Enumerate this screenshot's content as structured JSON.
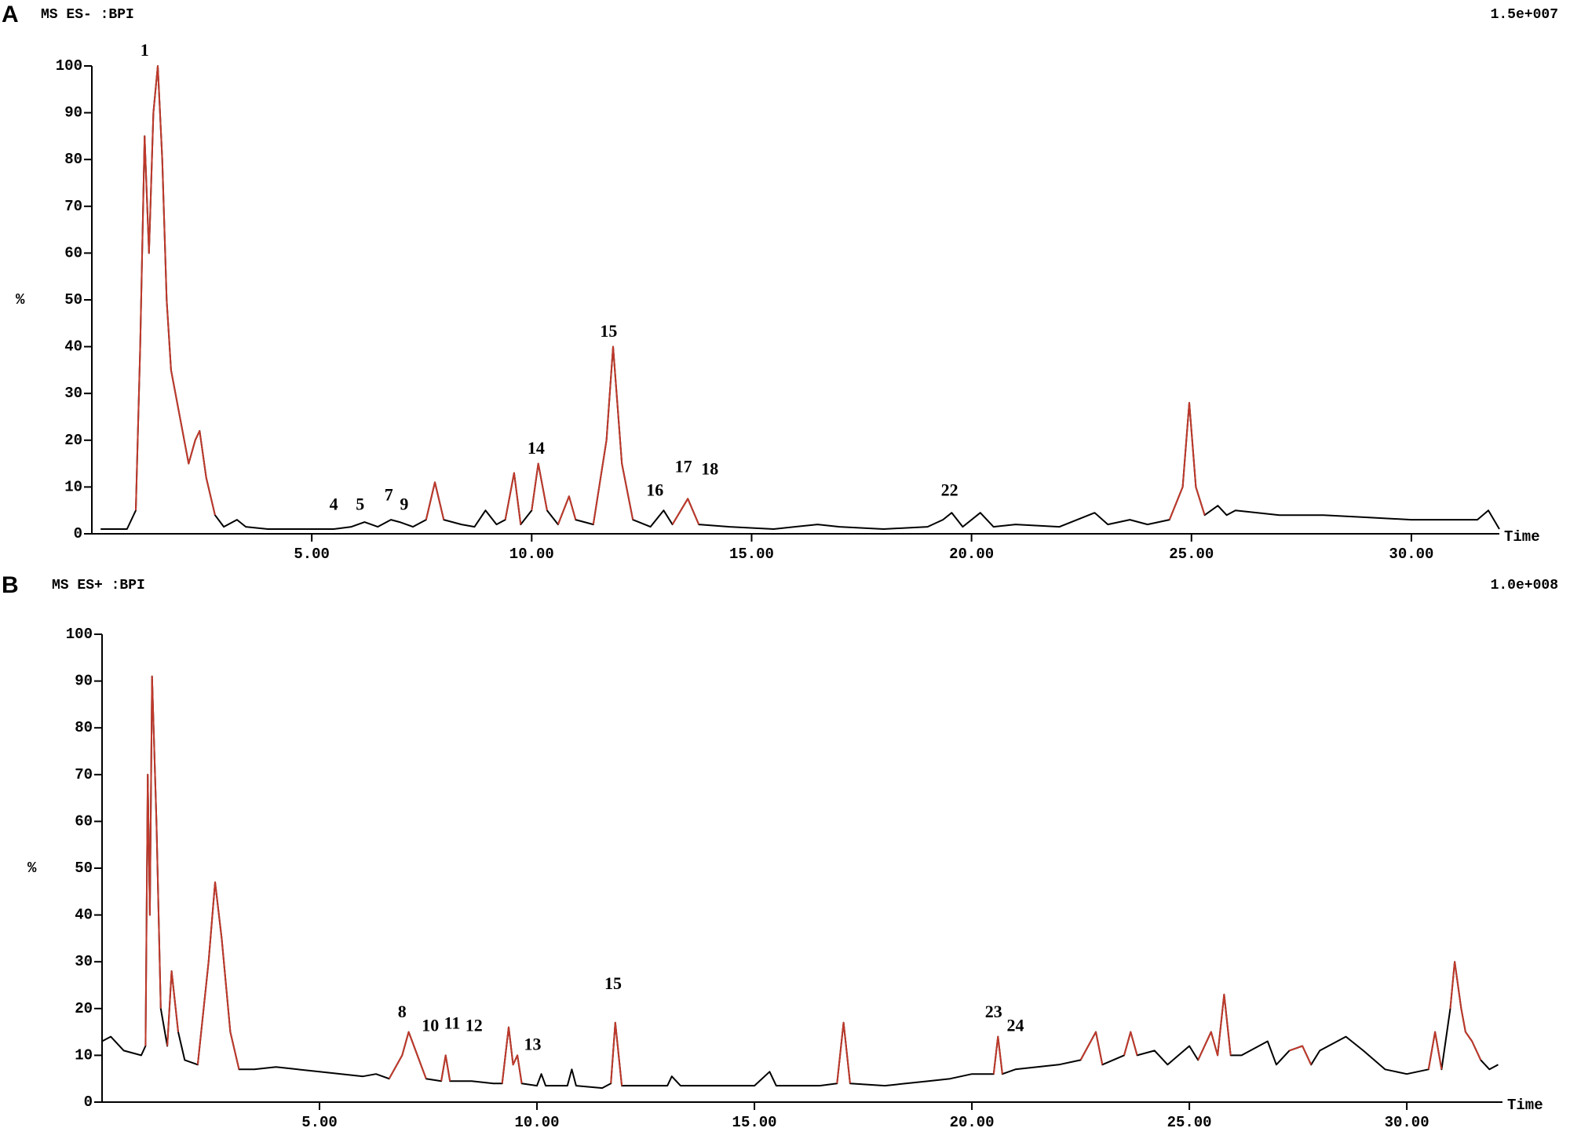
{
  "chart_data": [
    {
      "type": "line",
      "panel_label": "A",
      "header": "MS ES- :BPI",
      "scale": "1.5e+007",
      "ylabel": "%",
      "xlabel": "Time",
      "xlim": [
        0,
        32
      ],
      "ylim": [
        0,
        100
      ],
      "xticks": [
        {
          "value": 5,
          "label": "5.00"
        },
        {
          "value": 10,
          "label": "10.00"
        },
        {
          "value": 15,
          "label": "15.00"
        },
        {
          "value": 20,
          "label": "20.00"
        },
        {
          "value": 25,
          "label": "25.00"
        },
        {
          "value": 30,
          "label": "30.00"
        }
      ],
      "yticks": [
        0,
        10,
        20,
        30,
        40,
        50,
        60,
        70,
        80,
        90,
        100
      ],
      "series": [
        {
          "color": "#000000",
          "x": [
            0.2,
            0.8,
            1.0,
            1.1,
            1.2,
            1.3,
            1.4,
            1.5,
            1.6,
            1.7,
            1.8,
            2.0,
            2.2,
            2.35,
            2.45,
            2.6,
            2.8,
            3.0,
            3.3,
            3.5,
            4,
            5,
            5.5,
            5.9,
            6.2,
            6.5,
            6.8,
            7.0,
            7.3,
            7.6,
            7.8,
            8.0,
            8.4,
            8.7,
            8.95,
            9.2,
            9.4,
            9.6,
            9.75,
            10.0,
            10.15,
            10.35,
            10.6,
            10.85,
            11.0,
            11.4,
            11.7,
            11.85,
            12.05,
            12.3,
            12.7,
            13.0,
            13.2,
            13.55,
            13.8,
            14.5,
            15.5,
            16.5,
            17,
            18,
            19,
            19.35,
            19.55,
            19.8,
            20.2,
            20.5,
            21,
            22,
            22.8,
            23.1,
            23.6,
            24,
            24.5,
            24.8,
            24.95,
            25.1,
            25.3,
            25.6,
            25.8,
            26,
            27,
            28,
            29,
            30,
            31,
            31.5,
            31.75,
            32
          ],
          "values": [
            1,
            1,
            5,
            40,
            85,
            60,
            90,
            100,
            80,
            50,
            35,
            25,
            15,
            20,
            22,
            12,
            4,
            1.5,
            3,
            1.5,
            1,
            1,
            1,
            1.5,
            2.5,
            1.5,
            3,
            2.5,
            1.5,
            3,
            11,
            3,
            2,
            1.5,
            5,
            2,
            3,
            13,
            2,
            5,
            15,
            5,
            2,
            8,
            3,
            2,
            20,
            40,
            15,
            3,
            1.5,
            5,
            2,
            7.5,
            2,
            1.5,
            1,
            2,
            1.5,
            1,
            1.5,
            3,
            4.5,
            1.5,
            4.5,
            1.5,
            2,
            1.5,
            4.5,
            2,
            3,
            2,
            3,
            10,
            28,
            10,
            4,
            6,
            4,
            5,
            4,
            4,
            3.5,
            3,
            3,
            3,
            5,
            1
          ]
        },
        {
          "color": "#c0392b",
          "x": [
            1.0,
            1.1,
            1.2,
            1.3,
            1.4,
            1.5,
            1.6,
            1.7,
            1.8,
            2.0,
            2.2,
            2.35,
            2.45,
            2.6,
            2.8,
            3.0,
            7.6,
            7.8,
            8.0,
            8.2,
            9.4,
            9.6,
            9.75,
            9.9,
            10.0,
            10.15,
            10.35,
            10.5,
            10.6,
            10.85,
            11.0,
            11.2,
            11.4,
            11.7,
            11.85,
            12.05,
            12.3,
            12.5,
            13.2,
            13.55,
            13.8,
            14,
            24.5,
            24.8,
            24.95,
            25.1,
            25.3
          ],
          "values": [
            5,
            40,
            85,
            60,
            90,
            100,
            80,
            50,
            35,
            25,
            15,
            20,
            22,
            12,
            4,
            null,
            3,
            11,
            3,
            null,
            3,
            13,
            2,
            null,
            5,
            15,
            5,
            null,
            2,
            8,
            3,
            null,
            2,
            20,
            40,
            15,
            3,
            null,
            2,
            7.5,
            2,
            null,
            3,
            10,
            28,
            10,
            4
          ]
        }
      ],
      "annotations": [
        {
          "text": "1",
          "x": 1.2,
          "y": 103
        },
        {
          "text": "4",
          "x": 5.5,
          "y": 6
        },
        {
          "text": "5",
          "x": 6.1,
          "y": 6
        },
        {
          "text": "7",
          "x": 6.75,
          "y": 8
        },
        {
          "text": "9",
          "x": 7.1,
          "y": 6
        },
        {
          "text": "14",
          "x": 10.1,
          "y": 18
        },
        {
          "text": "15",
          "x": 11.75,
          "y": 43
        },
        {
          "text": "16",
          "x": 12.8,
          "y": 9
        },
        {
          "text": "17",
          "x": 13.45,
          "y": 14
        },
        {
          "text": "18",
          "x": 14.05,
          "y": 13.5
        },
        {
          "text": "22",
          "x": 19.5,
          "y": 9
        }
      ]
    },
    {
      "type": "line",
      "panel_label": "B",
      "header": "MS ES+ :BPI",
      "scale": "1.0e+008",
      "ylabel": "%",
      "xlabel": "Time",
      "xlim": [
        0,
        32.2
      ],
      "ylim": [
        0,
        100
      ],
      "xticks": [
        {
          "value": 5,
          "label": "5.00"
        },
        {
          "value": 10,
          "label": "10.00"
        },
        {
          "value": 15,
          "label": "15.00"
        },
        {
          "value": 20,
          "label": "20.00"
        },
        {
          "value": 25,
          "label": "25.00"
        },
        {
          "value": 30,
          "label": "30.00"
        }
      ],
      "yticks": [
        0,
        10,
        20,
        30,
        40,
        50,
        60,
        70,
        80,
        90,
        100
      ],
      "series": [
        {
          "color": "#000000",
          "x": [
            0,
            0.2,
            0.5,
            0.9,
            1.0,
            1.05,
            1.1,
            1.15,
            1.25,
            1.35,
            1.5,
            1.6,
            1.75,
            1.9,
            2.2,
            2.45,
            2.6,
            2.75,
            2.95,
            3.15,
            3.5,
            4,
            4.5,
            5,
            5.5,
            6,
            6.3,
            6.6,
            6.9,
            7.05,
            7.25,
            7.45,
            7.8,
            7.9,
            8.0,
            8.5,
            9,
            9.2,
            9.35,
            9.45,
            9.55,
            9.65,
            10,
            10.1,
            10.2,
            10.7,
            10.8,
            10.9,
            11.5,
            11.7,
            11.8,
            11.95,
            12.5,
            13,
            13.1,
            13.3,
            14,
            15,
            15.35,
            15.5,
            16.5,
            16.9,
            17.05,
            17.2,
            18,
            19,
            19.5,
            20,
            20.5,
            20.6,
            20.7,
            21,
            22,
            22.5,
            22.85,
            23,
            23.5,
            23.65,
            23.8,
            24.2,
            24.5,
            25,
            25.2,
            25.5,
            25.65,
            25.8,
            25.95,
            26.2,
            26.8,
            27,
            27.3,
            27.6,
            27.8,
            28,
            28.6,
            29,
            29.5,
            30,
            30.5,
            30.65,
            30.8,
            31.0,
            31.1,
            31.25,
            31.35,
            31.5,
            31.7,
            31.9,
            32.1
          ],
          "values": [
            13,
            14,
            11,
            10,
            12,
            70,
            40,
            91,
            60,
            20,
            12,
            28,
            15,
            9,
            8,
            30,
            47,
            35,
            15,
            7,
            7,
            7.5,
            7,
            6.5,
            6,
            5.5,
            6,
            5,
            10,
            15,
            10,
            5,
            4.5,
            10,
            4.5,
            4.5,
            4,
            4,
            16,
            8,
            10,
            4,
            3.5,
            6,
            3.5,
            3.5,
            7,
            3.5,
            3,
            4,
            17,
            3.5,
            3.5,
            3.5,
            5.5,
            3.5,
            3.5,
            3.5,
            6.5,
            3.5,
            3.5,
            4,
            17,
            4,
            3.5,
            4.5,
            5,
            6,
            6,
            14,
            6,
            7,
            8,
            9,
            15,
            8,
            10,
            15,
            10,
            11,
            8,
            12,
            9,
            15,
            10,
            23,
            10,
            10,
            13,
            8,
            11,
            12,
            8,
            11,
            14,
            11,
            7,
            6,
            7,
            15,
            7,
            20,
            30,
            20,
            15,
            13,
            9,
            7,
            8
          ]
        },
        {
          "color": "#c0392b",
          "x": [
            1.0,
            1.05,
            1.1,
            1.15,
            1.25,
            1.35,
            1.4,
            1.5,
            1.6,
            1.75,
            2.0,
            2.2,
            2.45,
            2.6,
            2.75,
            2.95,
            3.15,
            5,
            6.6,
            6.9,
            7.05,
            7.25,
            7.45,
            7.6,
            7.8,
            7.9,
            8.0,
            8.5,
            9.2,
            9.35,
            9.45,
            9.55,
            9.65,
            11,
            11.7,
            11.8,
            11.95,
            14,
            16.9,
            17.05,
            17.2,
            19,
            20.5,
            20.6,
            20.7,
            22,
            22.5,
            22.85,
            23,
            23.3,
            23.5,
            23.65,
            23.8,
            24.8,
            25.2,
            25.5,
            25.65,
            25.8,
            25.95,
            27,
            27.3,
            27.6,
            27.8,
            30,
            30.5,
            30.65,
            30.8,
            30.9,
            31.0,
            31.1,
            31.25,
            31.35,
            31.5,
            31.7
          ],
          "values": [
            12,
            70,
            40,
            91,
            60,
            20,
            null,
            12,
            28,
            15,
            null,
            8,
            30,
            47,
            35,
            15,
            7,
            null,
            5,
            10,
            15,
            10,
            5,
            null,
            4.5,
            10,
            4.5,
            null,
            4,
            16,
            8,
            10,
            4,
            null,
            4,
            17,
            3.5,
            null,
            4,
            17,
            4,
            null,
            6,
            14,
            6,
            null,
            9,
            15,
            8,
            null,
            10,
            15,
            10,
            null,
            9,
            15,
            10,
            23,
            10,
            null,
            11,
            12,
            8,
            null,
            7,
            15,
            7,
            null,
            20,
            30,
            20,
            15,
            13,
            9
          ]
        }
      ],
      "annotations": [
        {
          "text": "8",
          "x": 6.9,
          "y": 19
        },
        {
          "text": "10",
          "x": 7.55,
          "y": 16
        },
        {
          "text": "11",
          "x": 8.05,
          "y": 16.5
        },
        {
          "text": "12",
          "x": 8.55,
          "y": 16
        },
        {
          "text": "13",
          "x": 9.9,
          "y": 12
        },
        {
          "text": "15",
          "x": 11.75,
          "y": 25
        },
        {
          "text": "23",
          "x": 20.5,
          "y": 19
        },
        {
          "text": "24",
          "x": 21.0,
          "y": 16
        }
      ]
    }
  ]
}
